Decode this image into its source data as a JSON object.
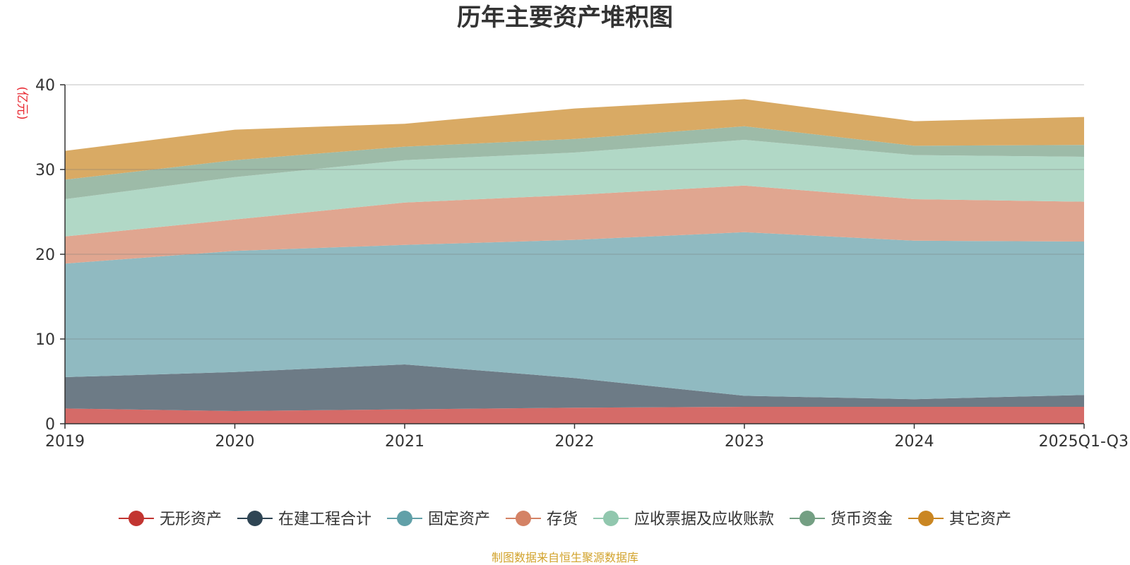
{
  "chart_data": {
    "type": "area",
    "stacked": true,
    "title": "历年主要资产堆积图",
    "ylabel": "(亿元)",
    "xlabel": "",
    "categories": [
      "2019",
      "2020",
      "2021",
      "2022",
      "2023",
      "2024",
      "2025Q1-Q3"
    ],
    "ylim": [
      0,
      40
    ],
    "yticks": [
      0,
      10,
      20,
      30,
      40
    ],
    "grid": true,
    "legend_position": "bottom",
    "series": [
      {
        "name": "无形资产",
        "color": "#c23531",
        "fill": "#d56b68",
        "values": [
          1.8,
          1.5,
          1.7,
          1.9,
          2.0,
          2.0,
          2.0
        ]
      },
      {
        "name": "在建工程合计",
        "color": "#2f4554",
        "fill": "#6d7b86",
        "values": [
          3.7,
          4.6,
          5.3,
          3.5,
          1.3,
          0.9,
          1.4
        ]
      },
      {
        "name": "固定资产",
        "color": "#61a0a8",
        "fill": "#90bac1",
        "values": [
          13.4,
          14.3,
          14.1,
          16.3,
          19.3,
          18.7,
          18.1
        ]
      },
      {
        "name": "存货",
        "color": "#d48265",
        "fill": "#e0a690",
        "values": [
          3.2,
          3.7,
          5.0,
          5.3,
          5.5,
          4.9,
          4.7
        ]
      },
      {
        "name": "应收票据及应收账款",
        "color": "#91c7ae",
        "fill": "#b1d8c6",
        "values": [
          4.4,
          5.0,
          5.0,
          5.0,
          5.4,
          5.2,
          5.3
        ]
      },
      {
        "name": "货币资金",
        "color": "#749f83",
        "fill": "#9dbba8",
        "values": [
          2.3,
          2.0,
          1.6,
          1.6,
          1.6,
          1.1,
          1.4
        ]
      },
      {
        "name": "其它资产",
        "color": "#ca8622",
        "fill": "#d9aa64",
        "values": [
          3.4,
          3.6,
          2.7,
          3.6,
          3.2,
          2.9,
          3.3
        ]
      }
    ]
  },
  "source_text": "制图数据来自恒生聚源数据库"
}
